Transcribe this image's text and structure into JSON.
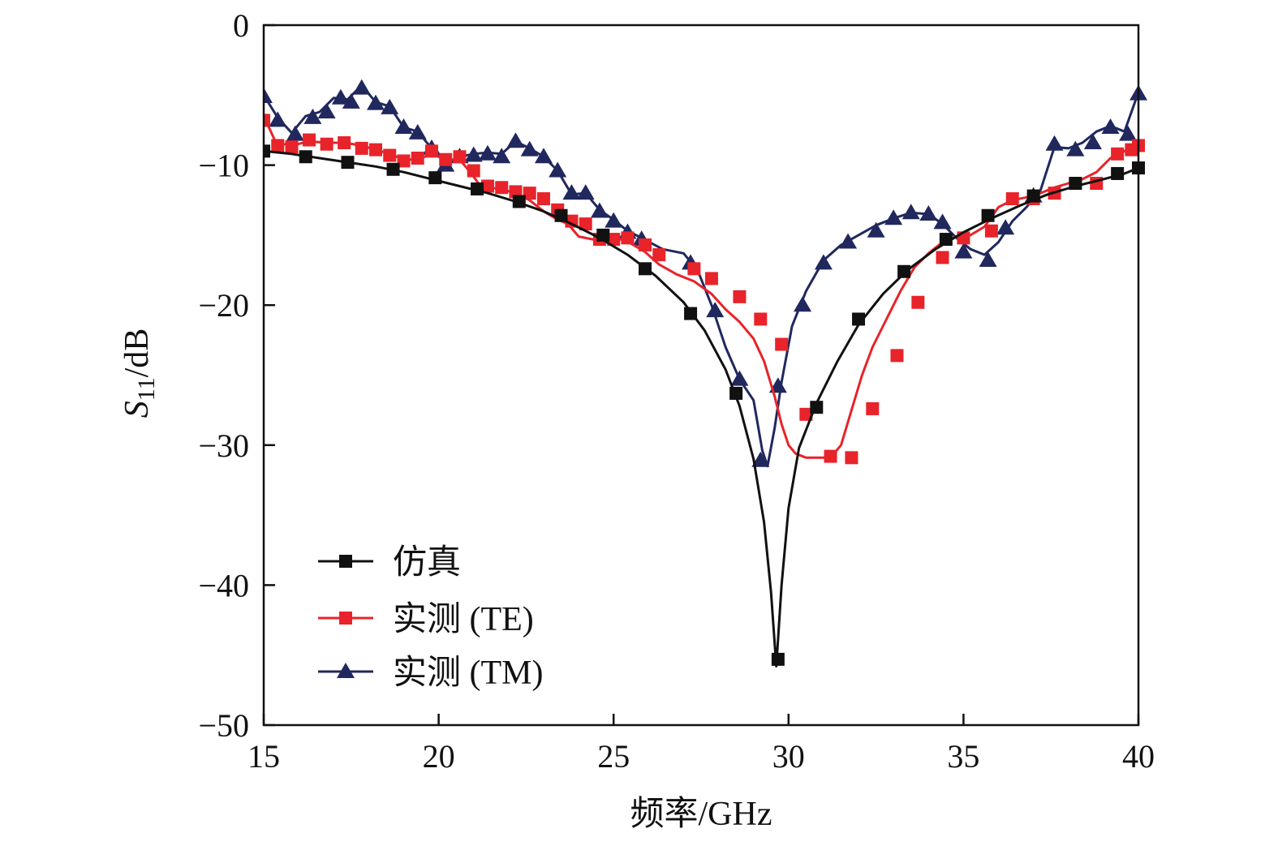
{
  "chart_data": {
    "type": "line",
    "title": "",
    "xlabel": "频率/GHz",
    "ylabel": {
      "main": "S",
      "sub": "11",
      "rest": "/dB"
    },
    "xlim": [
      15,
      40
    ],
    "ylim": [
      -50,
      0
    ],
    "xticks": [
      15,
      20,
      25,
      30,
      35,
      40
    ],
    "yticks": [
      0,
      -10,
      -20,
      -30,
      -40,
      -50
    ],
    "xtick_labels": [
      "15",
      "20",
      "25",
      "30",
      "35",
      "40"
    ],
    "ytick_labels": [
      "0",
      "−10",
      "−20",
      "−30",
      "−40",
      "−50"
    ],
    "grid": false,
    "legend_position": "bottom-left",
    "series": [
      {
        "name": "仿真",
        "color": "#111111",
        "marker": "square",
        "x": [
          15,
          15.8,
          16.6,
          17.4,
          18.2,
          19.0,
          19.8,
          20.6,
          21.4,
          22.2,
          23.0,
          23.8,
          24.6,
          25.4,
          26.2,
          27.0,
          27.6,
          28.2,
          28.6,
          29.0,
          29.3,
          29.5,
          29.65,
          29.8,
          30.0,
          30.3,
          30.8,
          31.4,
          32.0,
          32.7,
          33.4,
          34.2,
          35.0,
          35.8,
          36.6,
          37.4,
          38.2,
          39.0,
          39.6,
          40
        ],
        "y": [
          -9.0,
          -9.2,
          -9.5,
          -9.8,
          -10.1,
          -10.5,
          -11.0,
          -11.5,
          -12.0,
          -12.6,
          -13.3,
          -14.2,
          -15.2,
          -16.4,
          -17.9,
          -19.8,
          -21.8,
          -24.6,
          -27.2,
          -31.0,
          -35.5,
          -40.5,
          -45.8,
          -40.0,
          -34.5,
          -30.2,
          -27.0,
          -24.0,
          -21.4,
          -19.2,
          -17.5,
          -16.0,
          -14.8,
          -13.8,
          -12.9,
          -12.1,
          -11.5,
          -11.0,
          -10.6,
          -10.2
        ],
        "markers_x": [
          15.0,
          16.2,
          17.4,
          18.7,
          19.9,
          21.1,
          22.3,
          23.5,
          24.7,
          25.9,
          27.2,
          28.5,
          29.7,
          30.8,
          32.0,
          33.3,
          34.5,
          35.7,
          37.0,
          38.2,
          39.4,
          40.0
        ],
        "markers_y": [
          -9.0,
          -9.4,
          -9.8,
          -10.3,
          -10.9,
          -11.7,
          -12.6,
          -13.6,
          -15.0,
          -17.4,
          -20.6,
          -26.3,
          -45.3,
          -27.3,
          -21.0,
          -17.6,
          -15.3,
          -13.6,
          -12.2,
          -11.3,
          -10.6,
          -10.2
        ]
      },
      {
        "name": "实测 (TE)",
        "color": "#e8232a",
        "marker": "square",
        "x": [
          15.0,
          15.35,
          15.8,
          16.3,
          16.8,
          17.3,
          17.8,
          18.2,
          18.6,
          19.0,
          19.4,
          19.8,
          20.2,
          20.6,
          20.9,
          21.2,
          21.5,
          21.9,
          22.2,
          22.6,
          23.0,
          23.4,
          23.7,
          24.0,
          24.4,
          24.8,
          25.1,
          25.5,
          25.9,
          26.3,
          26.8,
          27.3,
          27.8,
          28.2,
          28.6,
          29.0,
          29.3,
          29.6,
          29.8,
          30.0,
          30.2,
          30.5,
          30.8,
          31.2,
          31.5,
          31.8,
          32.1,
          32.4,
          32.8,
          33.2,
          33.6,
          34.0,
          34.4,
          34.8,
          35.2,
          35.6,
          36.0,
          36.4,
          36.8,
          37.2,
          37.6,
          38.0,
          38.4,
          38.8,
          39.2,
          39.6,
          40.0
        ],
        "y": [
          -6.5,
          -8.4,
          -8.6,
          -8.3,
          -8.4,
          -8.4,
          -8.6,
          -8.9,
          -9.2,
          -9.6,
          -9.6,
          -9.2,
          -9.6,
          -9.6,
          -10.5,
          -11.5,
          -11.6,
          -11.8,
          -12.0,
          -12.5,
          -13.3,
          -13.9,
          -14.2,
          -15.1,
          -15.3,
          -15.3,
          -15.2,
          -15.6,
          -16.2,
          -17.1,
          -17.8,
          -18.3,
          -19.2,
          -20.3,
          -21.2,
          -22.4,
          -24.0,
          -26.5,
          -28.5,
          -30.0,
          -30.6,
          -30.9,
          -30.9,
          -30.9,
          -30.0,
          -27.5,
          -25.0,
          -23.0,
          -21.0,
          -19.0,
          -17.3,
          -16.3,
          -15.5,
          -15.1,
          -15.0,
          -14.4,
          -13.0,
          -12.5,
          -12.3,
          -12.0,
          -11.6,
          -11.3,
          -11.0,
          -10.5,
          -9.5,
          -9.0,
          -8.6
        ],
        "markers_x": [
          15.0,
          15.4,
          15.8,
          16.3,
          16.8,
          17.3,
          17.8,
          18.2,
          18.6,
          19.0,
          19.4,
          19.8,
          20.2,
          20.6,
          21.0,
          21.4,
          21.8,
          22.2,
          22.6,
          23.0,
          23.4,
          23.8,
          24.2,
          24.6,
          25.0,
          25.4,
          25.9,
          26.3,
          27.3,
          27.8,
          28.6,
          29.2,
          29.8,
          30.5,
          31.2,
          31.8,
          32.4,
          33.1,
          33.7,
          34.4,
          35.0,
          35.8,
          36.4,
          37.0,
          37.6,
          38.2,
          38.8,
          39.4,
          39.8,
          40.0
        ],
        "markers_y": [
          -6.8,
          -8.6,
          -8.7,
          -8.2,
          -8.5,
          -8.4,
          -8.8,
          -8.9,
          -9.3,
          -9.7,
          -9.5,
          -9.0,
          -9.6,
          -9.4,
          -10.4,
          -11.5,
          -11.6,
          -11.9,
          -12.0,
          -12.4,
          -13.2,
          -14.0,
          -14.2,
          -15.3,
          -15.3,
          -15.2,
          -15.7,
          -16.4,
          -17.4,
          -18.1,
          -19.4,
          -21.0,
          -22.8,
          -27.8,
          -30.8,
          -30.9,
          -27.4,
          -23.6,
          -19.8,
          -16.6,
          -15.2,
          -14.7,
          -12.4,
          -12.4,
          -12.0,
          -11.3,
          -11.3,
          -9.2,
          -8.9,
          -8.6
        ],
        "dummy": []
      },
      {
        "name": "实测 (TM)",
        "color": "#20285e",
        "marker": "triangle",
        "x": [
          15.0,
          15.4,
          15.8,
          16.2,
          16.6,
          17.0,
          17.4,
          17.8,
          18.2,
          18.6,
          19.0,
          19.4,
          19.8,
          20.2,
          20.6,
          21.0,
          21.4,
          21.8,
          22.2,
          22.6,
          23.0,
          23.4,
          23.8,
          24.2,
          24.6,
          25.0,
          25.4,
          25.8,
          26.4,
          27.0,
          27.4,
          27.8,
          28.2,
          28.6,
          29.0,
          29.25,
          29.4,
          29.6,
          29.8,
          30.1,
          30.5,
          31.0,
          31.5,
          32.0,
          32.5,
          33.0,
          33.5,
          34.0,
          34.4,
          34.8,
          35.2,
          35.6,
          36.0,
          36.4,
          36.8,
          37.2,
          37.6,
          38.0,
          38.4,
          38.8,
          39.2,
          39.6,
          40.0
        ],
        "y": [
          -5.0,
          -6.6,
          -7.7,
          -6.5,
          -6.2,
          -5.2,
          -5.3,
          -4.3,
          -5.5,
          -5.8,
          -7.3,
          -7.6,
          -8.8,
          -9.9,
          -9.4,
          -9.2,
          -9.1,
          -9.2,
          -8.3,
          -8.8,
          -9.4,
          -10.4,
          -12.1,
          -12.0,
          -13.2,
          -13.9,
          -14.7,
          -15.2,
          -16.0,
          -16.3,
          -17.5,
          -20.0,
          -23.0,
          -25.3,
          -26.8,
          -30.4,
          -31.5,
          -28.8,
          -25.5,
          -21.5,
          -19.0,
          -16.8,
          -15.7,
          -15.0,
          -14.3,
          -13.8,
          -13.4,
          -13.5,
          -14.2,
          -15.2,
          -16.0,
          -16.4,
          -15.5,
          -14.0,
          -13.0,
          -11.8,
          -8.7,
          -8.8,
          -8.4,
          -7.6,
          -7.2,
          -7.6,
          -4.8
        ],
        "markers_x": [
          15.0,
          15.4,
          15.9,
          16.4,
          16.8,
          17.2,
          17.5,
          17.8,
          18.2,
          18.6,
          19.0,
          19.4,
          19.8,
          20.2,
          20.6,
          21.0,
          21.4,
          21.8,
          22.2,
          22.6,
          23.0,
          23.4,
          23.8,
          24.2,
          24.6,
          25.0,
          25.4,
          25.8,
          27.2,
          27.9,
          28.6,
          29.2,
          29.7,
          30.4,
          31.0,
          31.7,
          32.5,
          33.0,
          33.5,
          34.0,
          34.4,
          35.0,
          35.7,
          36.2,
          37.0,
          37.6,
          38.2,
          38.7,
          39.2,
          39.7,
          40.0
        ],
        "markers_y": [
          -5.1,
          -6.8,
          -7.8,
          -6.6,
          -6.2,
          -5.2,
          -5.5,
          -4.5,
          -5.6,
          -5.9,
          -7.3,
          -7.7,
          -8.8,
          -10.0,
          -9.4,
          -9.3,
          -9.2,
          -9.4,
          -8.3,
          -8.9,
          -9.4,
          -10.4,
          -12.0,
          -12.0,
          -13.3,
          -14.0,
          -14.8,
          -15.3,
          -17.0,
          -20.4,
          -25.3,
          -31.1,
          -25.8,
          -20.0,
          -17.0,
          -15.5,
          -14.7,
          -13.8,
          -13.4,
          -13.5,
          -14.1,
          -16.2,
          -16.8,
          -14.5,
          -12.2,
          -8.5,
          -8.9,
          -8.4,
          -7.3,
          -7.8,
          -4.9
        ]
      }
    ]
  }
}
